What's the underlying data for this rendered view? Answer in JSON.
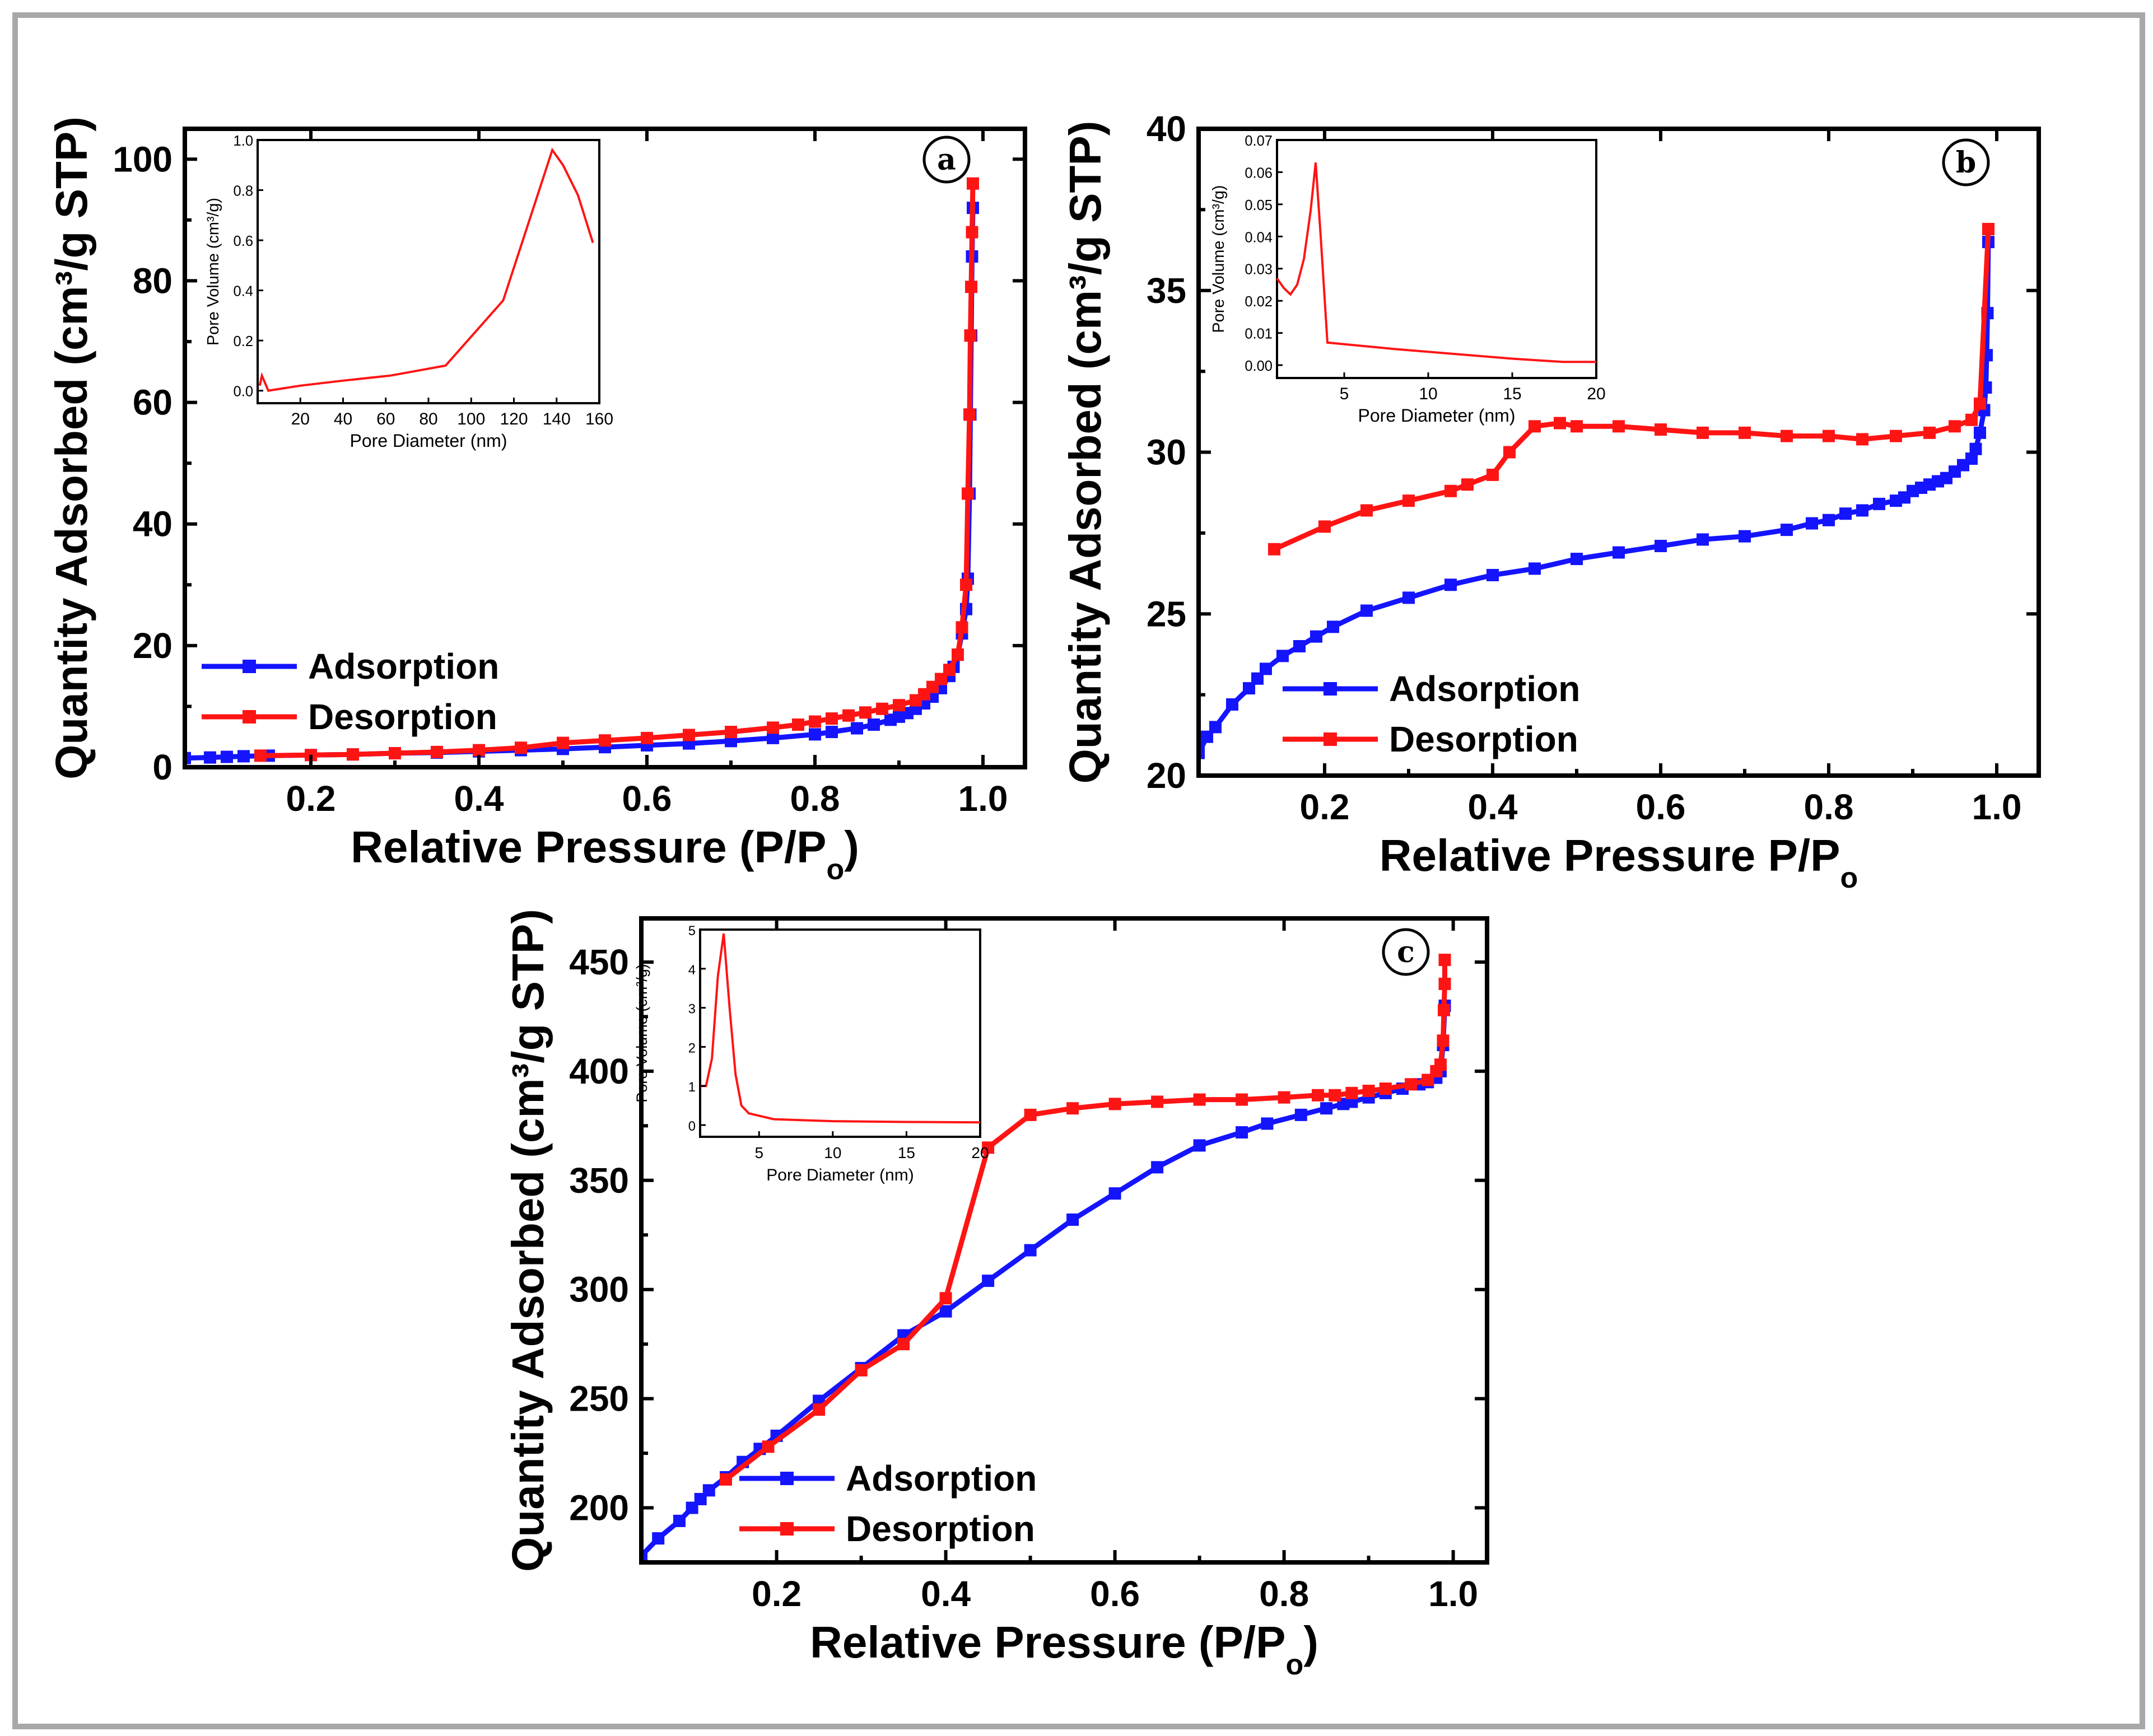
{
  "chart_data": [
    {
      "type": "line",
      "panel_label": "a",
      "xlabel": "Relative Pressure (P/P",
      "xlabel_sub": "o",
      "xlabel_tail": ")",
      "ylabel": "Quantity Adsorbed (cm³/g STP)",
      "xlim": [
        0.05,
        1.05
      ],
      "ylim": [
        0,
        105
      ],
      "xticks": [
        0.2,
        0.4,
        0.6,
        0.8,
        1.0
      ],
      "xtick_labels": [
        "0.2",
        "0.4",
        "0.6",
        "0.8",
        "1.0"
      ],
      "yticks": [
        0,
        20,
        40,
        60,
        80,
        100
      ],
      "ytick_labels": [
        "0",
        "20",
        "40",
        "60",
        "80",
        "100"
      ],
      "legend": "bottom-left",
      "series": [
        {
          "name": "Adsorption",
          "color": "#1414ff",
          "x": [
            0.05,
            0.08,
            0.1,
            0.12,
            0.15,
            0.2,
            0.25,
            0.3,
            0.35,
            0.4,
            0.45,
            0.5,
            0.55,
            0.6,
            0.65,
            0.7,
            0.75,
            0.8,
            0.82,
            0.85,
            0.87,
            0.89,
            0.9,
            0.91,
            0.92,
            0.93,
            0.94,
            0.95,
            0.96,
            0.965,
            0.97,
            0.975,
            0.98,
            0.982,
            0.984,
            0.985,
            0.986,
            0.987,
            0.988
          ],
          "y": [
            1.5,
            1.6,
            1.7,
            1.8,
            1.9,
            2.0,
            2.1,
            2.3,
            2.4,
            2.6,
            2.8,
            3.0,
            3.3,
            3.6,
            3.9,
            4.3,
            4.8,
            5.4,
            5.8,
            6.4,
            7.0,
            7.8,
            8.3,
            8.9,
            9.6,
            10.5,
            11.6,
            13.0,
            15.0,
            16.5,
            18.5,
            22.0,
            26.0,
            31.0,
            45.0,
            58.0,
            71.0,
            84.0,
            92.0
          ]
        },
        {
          "name": "Desorption",
          "color": "#ff1414",
          "x": [
            0.988,
            0.987,
            0.986,
            0.985,
            0.984,
            0.982,
            0.98,
            0.975,
            0.97,
            0.96,
            0.95,
            0.94,
            0.93,
            0.92,
            0.9,
            0.88,
            0.86,
            0.84,
            0.82,
            0.8,
            0.78,
            0.75,
            0.7,
            0.65,
            0.6,
            0.55,
            0.5,
            0.45,
            0.4,
            0.35,
            0.3,
            0.25,
            0.2,
            0.14
          ],
          "y": [
            96.0,
            88.0,
            79.0,
            71.0,
            58.0,
            45.0,
            30.0,
            23.0,
            18.5,
            16.0,
            14.5,
            13.2,
            12.0,
            11.0,
            10.2,
            9.6,
            9.0,
            8.5,
            8.0,
            7.5,
            7.0,
            6.5,
            5.8,
            5.3,
            4.8,
            4.4,
            4.0,
            3.2,
            2.8,
            2.5,
            2.3,
            2.1,
            2.0,
            1.9
          ]
        }
      ],
      "inset": {
        "xlabel": "Pore Diameter (nm)",
        "ylabel": "Pore Volume (cm³/g)",
        "xlim": [
          0,
          160
        ],
        "ylim": [
          -0.05,
          1.0
        ],
        "xticks": [
          20,
          40,
          60,
          80,
          100,
          120,
          140,
          160
        ],
        "xtick_labels": [
          "20",
          "40",
          "60",
          "80",
          "100",
          "120",
          "140",
          "160"
        ],
        "yticks": [
          0.0,
          0.2,
          0.4,
          0.6,
          0.8,
          1.0
        ],
        "ytick_labels": [
          "0.0",
          "0.2",
          "0.4",
          "0.6",
          "0.8",
          "1.0"
        ],
        "color": "#ff1414",
        "x": [
          1,
          2,
          5,
          20,
          40,
          62,
          88,
          115,
          138,
          143,
          150,
          157
        ],
        "y": [
          0.02,
          0.06,
          0.0,
          0.02,
          0.04,
          0.06,
          0.1,
          0.36,
          0.96,
          0.9,
          0.78,
          0.59
        ]
      }
    },
    {
      "type": "line",
      "panel_label": "b",
      "xlabel": "Relative Pressure P/P",
      "xlabel_sub": "o",
      "xlabel_tail": "",
      "ylabel": "Quantity Adsorbed (cm³/g STP)",
      "xlim": [
        0.05,
        1.05
      ],
      "ylim": [
        20,
        40
      ],
      "xticks": [
        0.2,
        0.4,
        0.6,
        0.8,
        1.0
      ],
      "xtick_labels": [
        "0.2",
        "0.4",
        "0.6",
        "0.8",
        "1.0"
      ],
      "yticks": [
        20,
        25,
        30,
        35,
        40
      ],
      "ytick_labels": [
        "20",
        "25",
        "30",
        "35",
        "40"
      ],
      "legend": "bottom-left",
      "series": [
        {
          "name": "Adsorption",
          "color": "#1414ff",
          "x": [
            0.05,
            0.06,
            0.07,
            0.09,
            0.11,
            0.12,
            0.13,
            0.15,
            0.17,
            0.19,
            0.21,
            0.25,
            0.3,
            0.35,
            0.4,
            0.45,
            0.5,
            0.55,
            0.6,
            0.65,
            0.7,
            0.75,
            0.78,
            0.8,
            0.82,
            0.84,
            0.86,
            0.88,
            0.89,
            0.9,
            0.91,
            0.92,
            0.93,
            0.94,
            0.95,
            0.96,
            0.97,
            0.975,
            0.98,
            0.985,
            0.987,
            0.988,
            0.989,
            0.99
          ],
          "y": [
            20.7,
            21.2,
            21.5,
            22.2,
            22.7,
            23.0,
            23.3,
            23.7,
            24.0,
            24.3,
            24.6,
            25.1,
            25.5,
            25.9,
            26.2,
            26.4,
            26.7,
            26.9,
            27.1,
            27.3,
            27.4,
            27.6,
            27.8,
            27.9,
            28.1,
            28.2,
            28.4,
            28.5,
            28.6,
            28.8,
            28.9,
            29.0,
            29.1,
            29.2,
            29.4,
            29.6,
            29.8,
            30.1,
            30.6,
            31.3,
            32.0,
            33.0,
            34.3,
            36.5
          ]
        },
        {
          "name": "Desorption",
          "color": "#ff1414",
          "x": [
            0.99,
            0.98,
            0.97,
            0.95,
            0.92,
            0.88,
            0.84,
            0.8,
            0.75,
            0.7,
            0.65,
            0.6,
            0.55,
            0.5,
            0.48,
            0.45,
            0.42,
            0.4,
            0.37,
            0.35,
            0.3,
            0.25,
            0.2,
            0.14
          ],
          "y": [
            36.9,
            31.5,
            31.0,
            30.8,
            30.6,
            30.5,
            30.4,
            30.5,
            30.5,
            30.6,
            30.6,
            30.7,
            30.8,
            30.8,
            30.9,
            30.8,
            30.0,
            29.3,
            29.0,
            28.8,
            28.5,
            28.2,
            27.7,
            27.0
          ]
        }
      ],
      "inset": {
        "xlabel": "Pore Diameter (nm)",
        "ylabel": "Pore Volume (cm³/g)",
        "xlim": [
          1,
          20
        ],
        "ylim": [
          -0.004,
          0.07
        ],
        "xticks": [
          5,
          10,
          15,
          20
        ],
        "xtick_labels": [
          "5",
          "10",
          "15",
          "20"
        ],
        "yticks": [
          0.0,
          0.01,
          0.02,
          0.03,
          0.04,
          0.05,
          0.06,
          0.07
        ],
        "ytick_labels": [
          "0.00",
          "0.01",
          "0.02",
          "0.03",
          "0.04",
          "0.05",
          "0.06",
          "0.07"
        ],
        "color": "#ff1414",
        "x": [
          1.0,
          1.4,
          1.8,
          2.2,
          2.6,
          3.0,
          3.3,
          3.6,
          4.0,
          8.0,
          15.0,
          18.0,
          20.0
        ],
        "y": [
          0.027,
          0.024,
          0.022,
          0.025,
          0.033,
          0.048,
          0.063,
          0.04,
          0.007,
          0.005,
          0.002,
          0.001,
          0.001
        ]
      }
    },
    {
      "type": "line",
      "panel_label": "c",
      "xlabel": "Relative Pressure (P/P",
      "xlabel_sub": "o",
      "xlabel_tail": ")",
      "ylabel": "Quantity Adsorbed (cm³/g STP)",
      "xlim": [
        0.04,
        1.04
      ],
      "ylim": [
        175,
        470
      ],
      "xticks": [
        0.2,
        0.4,
        0.6,
        0.8,
        1.0
      ],
      "xtick_labels": [
        "0.2",
        "0.4",
        "0.6",
        "0.8",
        "1.0"
      ],
      "yticks": [
        200,
        250,
        300,
        350,
        400,
        450
      ],
      "ytick_labels": [
        "200",
        "250",
        "300",
        "350",
        "400",
        "450"
      ],
      "legend": "bottom-left",
      "series": [
        {
          "name": "Adsorption",
          "color": "#1414ff",
          "x": [
            0.04,
            0.06,
            0.085,
            0.1,
            0.11,
            0.12,
            0.14,
            0.16,
            0.18,
            0.2,
            0.25,
            0.3,
            0.35,
            0.4,
            0.45,
            0.5,
            0.55,
            0.6,
            0.65,
            0.7,
            0.75,
            0.78,
            0.82,
            0.85,
            0.87,
            0.88,
            0.9,
            0.92,
            0.94,
            0.96,
            0.97,
            0.98,
            0.985,
            0.988,
            0.99
          ],
          "y": [
            178,
            186,
            194,
            200,
            204,
            208,
            214,
            221,
            227,
            233,
            249,
            264,
            279,
            290,
            304,
            318,
            332,
            344,
            356,
            366,
            372,
            376,
            380,
            383,
            385,
            386,
            388,
            390,
            392,
            394,
            395,
            397,
            400,
            412,
            430
          ]
        },
        {
          "name": "Desorption",
          "color": "#ff1414",
          "x": [
            0.99,
            0.99,
            0.989,
            0.988,
            0.985,
            0.98,
            0.97,
            0.95,
            0.92,
            0.9,
            0.88,
            0.86,
            0.84,
            0.8,
            0.75,
            0.7,
            0.65,
            0.6,
            0.55,
            0.5,
            0.45,
            0.4,
            0.35,
            0.3,
            0.25,
            0.19,
            0.14
          ],
          "y": [
            451,
            440,
            428,
            414,
            403,
            400,
            396,
            394,
            392,
            391,
            390,
            389,
            389,
            388,
            387,
            387,
            386,
            385,
            383,
            380,
            365,
            296,
            275,
            263,
            245,
            228,
            213
          ]
        }
      ],
      "inset": {
        "xlabel": "Pore Diameter (nm)",
        "ylabel": "Pore Volume (cm³/g)",
        "xlim": [
          1,
          20
        ],
        "ylim": [
          -0.3,
          5.0
        ],
        "xticks": [
          5,
          10,
          15,
          20
        ],
        "xtick_labels": [
          "5",
          "10",
          "15",
          "20"
        ],
        "yticks": [
          0,
          1,
          2,
          3,
          4,
          5
        ],
        "ytick_labels": [
          "0",
          "1",
          "2",
          "3",
          "4",
          "5"
        ],
        "color": "#ff1414",
        "x": [
          1.0,
          1.4,
          1.8,
          2.2,
          2.6,
          3.0,
          3.4,
          3.8,
          4.3,
          6.0,
          10.0,
          15.0,
          20.0
        ],
        "y": [
          1.0,
          1.0,
          1.7,
          3.8,
          4.9,
          3.0,
          1.3,
          0.5,
          0.3,
          0.15,
          0.1,
          0.08,
          0.07
        ]
      }
    }
  ]
}
